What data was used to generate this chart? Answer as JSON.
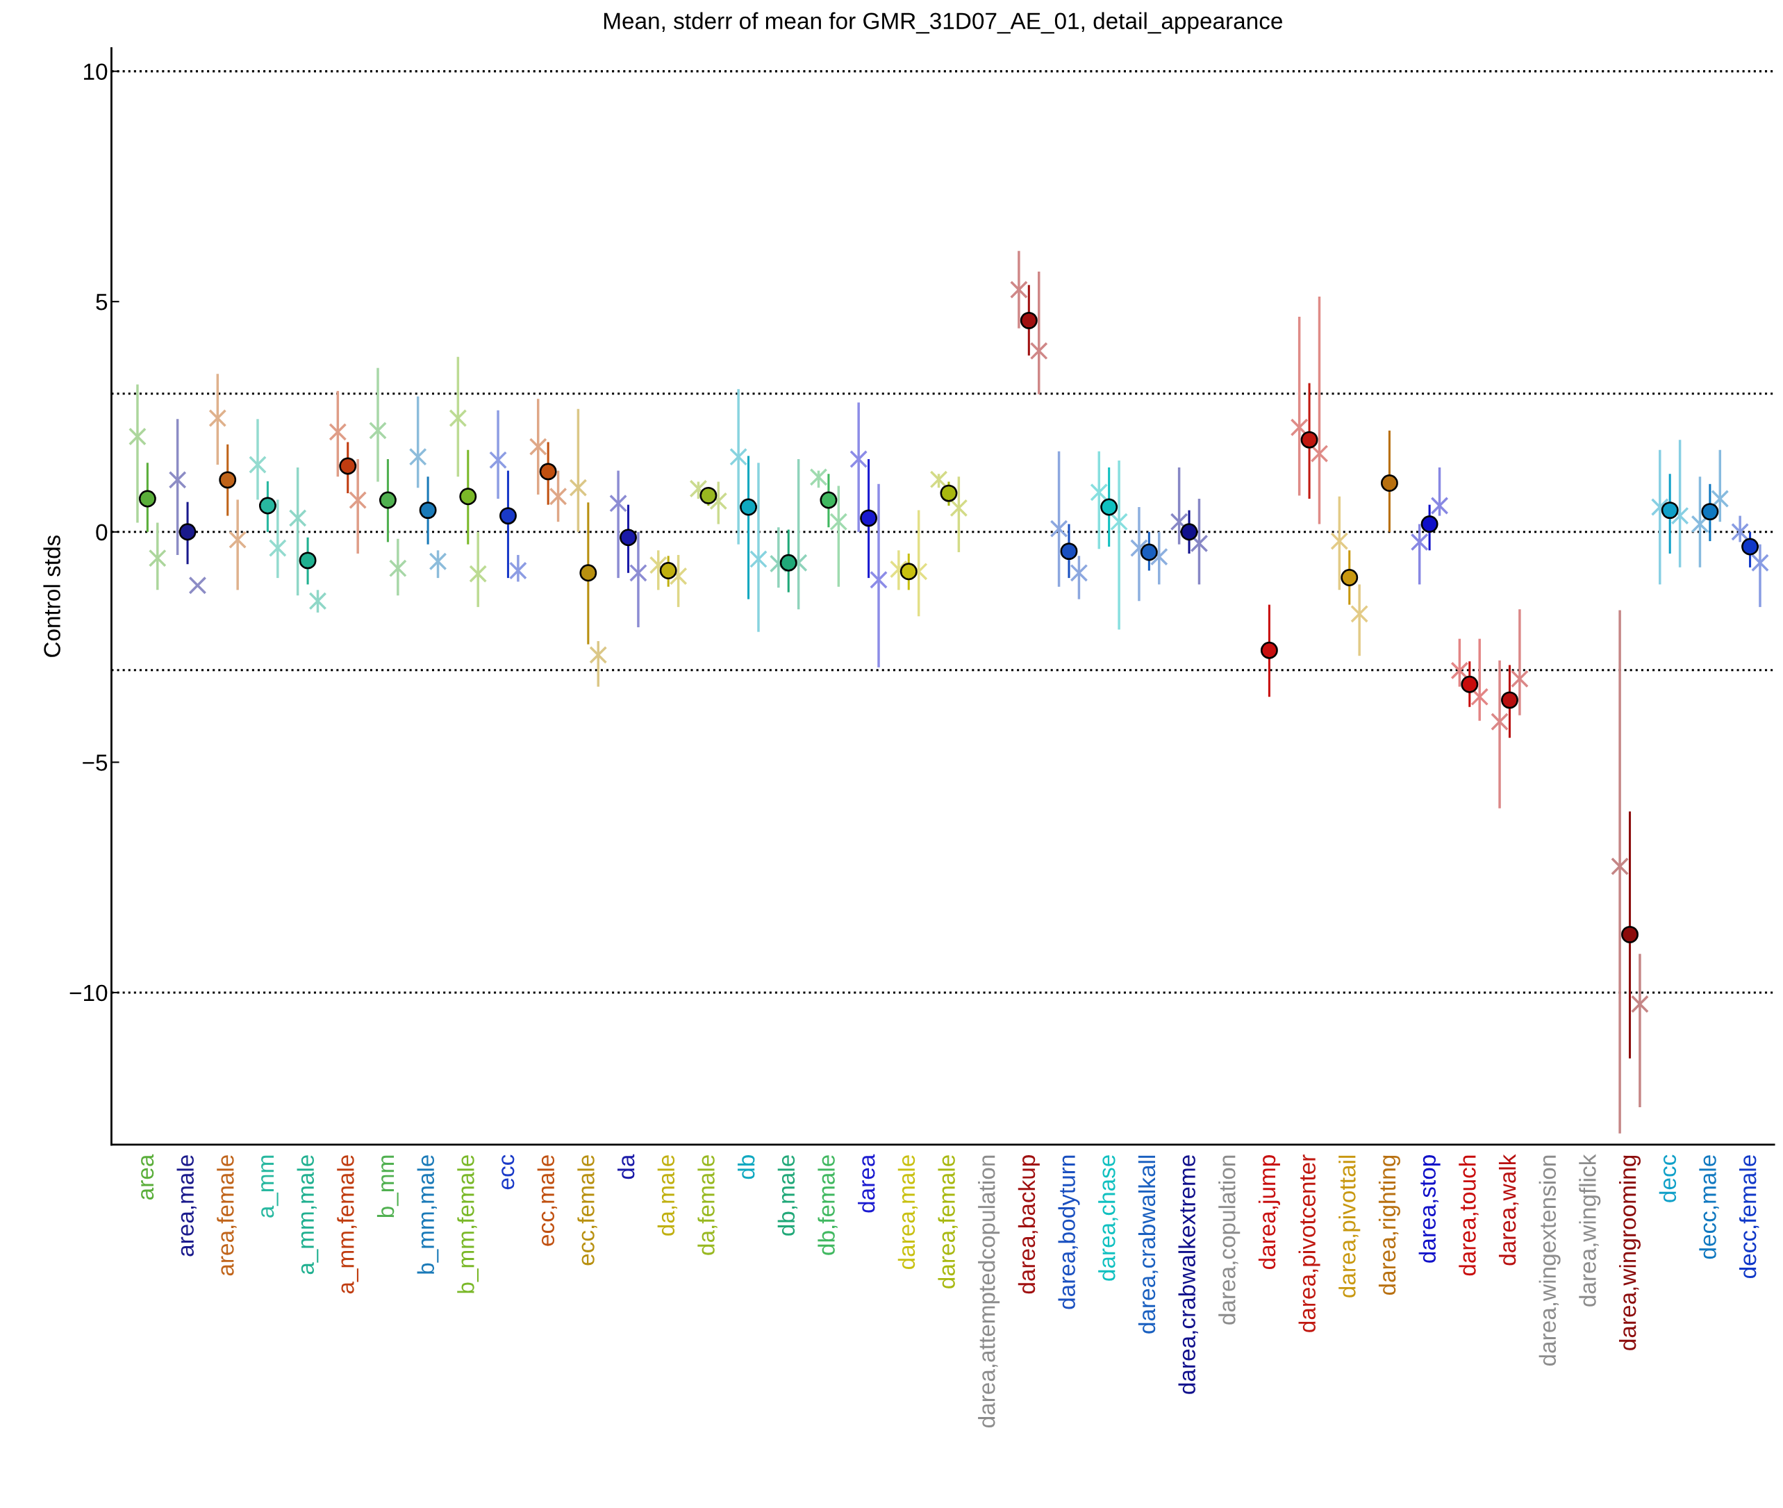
{
  "chart_data": {
    "type": "scatter",
    "title": "Mean, stderr of mean for GMR_31D07_AE_01, detail_appearance",
    "ylabel": "Control stds",
    "categories": [
      "area",
      "area,male",
      "area,female",
      "a_mm",
      "a_mm,male",
      "a_mm,female",
      "b_mm",
      "b_mm,male",
      "b_mm,female",
      "ecc",
      "ecc,male",
      "ecc,female",
      "da",
      "da,male",
      "da,female",
      "db",
      "db,male",
      "db,female",
      "darea",
      "darea,male",
      "darea,female",
      "darea,attemptedcopulation",
      "darea,backup",
      "darea,bodyturn",
      "darea,chase",
      "darea,crabwalkall",
      "darea,crabwalkextreme",
      "darea,copulation",
      "darea,jump",
      "darea,pivotcenter",
      "darea,pivottail",
      "darea,righting",
      "darea,stop",
      "darea,touch",
      "darea,walk",
      "darea,wingextension",
      "darea,wingflick",
      "darea,wingrooming",
      "decc",
      "decc,male",
      "decc,female"
    ],
    "ylim": [
      -13.3,
      10.5
    ],
    "yticks": [
      {
        "value": -10,
        "label": "−10"
      },
      {
        "value": -5,
        "label": "−5"
      },
      0,
      5,
      10
    ],
    "grid": false,
    "legend": false,
    "ref_lines": [
      {
        "axis": "y",
        "value": 10,
        "color": "#000000",
        "line_style": "dotted"
      },
      {
        "axis": "y",
        "value": 3,
        "color": "#000000",
        "line_style": "dotted"
      },
      {
        "axis": "y",
        "value": 0,
        "color": "#000000",
        "line_style": "dotted"
      },
      {
        "axis": "y",
        "value": -3,
        "color": "#000000",
        "line_style": "dotted"
      },
      {
        "axis": "y",
        "value": -10,
        "color": "#000000",
        "line_style": "dotted"
      }
    ],
    "series": [
      {
        "marker": "cross",
        "values": [
          2.07,
          1.13,
          2.47,
          1.46,
          0.3,
          2.17,
          2.2,
          1.63,
          2.47,
          1.56,
          1.85,
          0.96,
          0.62,
          -0.72,
          0.94,
          1.63,
          -0.69,
          1.19,
          1.58,
          -0.81,
          1.14,
          null,
          5.26,
          0.07,
          0.86,
          -0.35,
          0.22,
          null,
          null,
          2.27,
          -0.2,
          null,
          -0.22,
          -3.01,
          -4.12,
          null,
          null,
          -7.26,
          0.54,
          0.17,
          0
        ],
        "errors": [
          [
            0.2,
            3.2
          ],
          [
            -0.5,
            2.45
          ],
          [
            1.46,
            3.43
          ],
          [
            0.7,
            2.45
          ],
          [
            -1.38,
            1.4
          ],
          [
            1.2,
            3.06
          ],
          [
            1.09,
            3.56
          ],
          [
            0.96,
            2.94
          ],
          [
            1.2,
            3.8
          ],
          [
            0.72,
            2.64
          ],
          [
            0.81,
            2.89
          ],
          [
            0,
            2.67
          ],
          [
            -1.0,
            1.33
          ],
          [
            -1.26,
            -0.4
          ],
          [
            0.72,
            1.09
          ],
          [
            -0.27,
            3.1
          ],
          [
            -1.21,
            0.1
          ],
          [
            0.96,
            1.33
          ],
          [
            0,
            2.81
          ],
          [
            -1.26,
            -0.4
          ],
          [
            0.96,
            1.26
          ],
          null,
          [
            4.42,
            6.1
          ],
          [
            -1.19,
            1.75
          ],
          [
            -0.37,
            1.75
          ],
          [
            -1.5,
            0.54
          ],
          [
            -0.27,
            1.4
          ],
          null,
          null,
          [
            0.79,
            4.67
          ],
          [
            -1.26,
            0.77
          ],
          null,
          [
            -1.14,
            0.17
          ],
          [
            -3.36,
            -2.32
          ],
          [
            -6.0,
            -2.79
          ],
          null,
          null,
          [
            -13.06,
            -1.7
          ],
          [
            -1.14,
            1.78
          ],
          [
            -0.77,
            1.2
          ],
          [
            -0.22,
            0.35
          ]
        ],
        "colors": [
          "#acd69c",
          "#8c8cc5",
          "#dfb18c",
          "#93dbcf",
          "#8fd7c7",
          "#df9d87",
          "#a7d7a7",
          "#8cbcdb",
          "#bcdb93",
          "#8c9ce3",
          "#dfa787",
          "#dbc787",
          "#8c8cd3",
          "#dfd787",
          "#cbdb8f",
          "#87d3df",
          "#8fd3bb",
          "#9fdbaf",
          "#8c8ce7",
          "#e3df87",
          "#d3db87",
          null,
          "#cf8787",
          "#8ca7df",
          "#87dfdf",
          "#8cafdf",
          "#8787c5",
          null,
          null,
          "#df8b87",
          "#e3cb87",
          null,
          "#8787e3",
          "#e38585",
          "#db8787",
          null,
          null,
          "#c58585",
          "#87cfe3",
          "#87bbdf",
          "#879be3"
        ]
      },
      {
        "marker": "cross",
        "values": [
          -0.57,
          -1.16,
          -0.17,
          -0.35,
          -1.5,
          0.69,
          -0.79,
          -0.64,
          -0.91,
          -0.84,
          0.77,
          -2.67,
          -0.89,
          -0.96,
          0.67,
          -0.59,
          -0.67,
          0.22,
          -1.04,
          -0.86,
          0.52,
          null,
          3.93,
          -0.89,
          0.22,
          -0.54,
          -0.25,
          null,
          null,
          1.7,
          -1.78,
          null,
          0.57,
          -3.58,
          -3.19,
          null,
          null,
          -10.25,
          0.35,
          0.72,
          -0.67
        ],
        "errors": [
          [
            -1.26,
            0.2
          ],
          null,
          [
            -1.26,
            0.7
          ],
          [
            -1.0,
            0.7
          ],
          [
            -1.75,
            -1.26
          ],
          [
            -0.47,
            1.58
          ],
          [
            -1.38,
            -0.15
          ],
          [
            -1.0,
            -0.4
          ],
          [
            -1.63,
            0
          ],
          [
            -1.08,
            -0.5
          ],
          [
            0.22,
            1.33
          ],
          [
            -3.36,
            -2.37
          ],
          [
            -2.07,
            0
          ],
          [
            -1.63,
            -0.5
          ],
          [
            0.17,
            1.09
          ],
          [
            -2.17,
            1.5
          ],
          [
            -1.68,
            1.58
          ],
          [
            -1.19,
            1.0
          ],
          [
            -2.94,
            1.04
          ],
          [
            -1.83,
            0.47
          ],
          [
            -0.44,
            1.2
          ],
          null,
          [
            2.99,
            5.65
          ],
          [
            -1.46,
            -0.52
          ],
          [
            -2.12,
            1.55
          ],
          [
            -1.14,
            0
          ],
          [
            -1.14,
            0.72
          ],
          null,
          null,
          [
            0.17,
            5.11
          ],
          [
            -2.69,
            -1.14
          ],
          null,
          [
            0.35,
            1.4
          ],
          [
            -4.1,
            -2.32
          ],
          [
            -3.98,
            -1.68
          ],
          null,
          null,
          [
            -12.49,
            -9.16
          ],
          [
            -0.77,
            2.0
          ],
          [
            0.22,
            1.78
          ],
          [
            -1.63,
            -0.27
          ]
        ],
        "colors": [
          "#acd69c",
          "#8c8cc5",
          "#dfb18c",
          "#93dbcf",
          "#8fd7c7",
          "#df9d87",
          "#a7d7a7",
          "#8cbcdb",
          "#bcdb93",
          "#8c9ce3",
          "#dfa787",
          "#dbc787",
          "#8c8cd3",
          "#dfd787",
          "#cbdb8f",
          "#87d3df",
          "#8fd3bb",
          "#9fdbaf",
          "#8c8ce7",
          "#e3df87",
          "#d3db87",
          null,
          "#cf8787",
          "#8ca7df",
          "#87dfdf",
          "#8cafdf",
          "#8787c5",
          null,
          null,
          "#df8b87",
          "#e3cb87",
          null,
          "#8787e3",
          "#e38585",
          "#db8787",
          null,
          null,
          "#c58585",
          "#87cfe3",
          "#87bbdf",
          "#879be3"
        ]
      },
      {
        "marker": "circle",
        "values": [
          0.72,
          0,
          1.13,
          0.57,
          -0.62,
          1.43,
          0.69,
          0.47,
          0.77,
          0.35,
          1.31,
          -0.89,
          -0.12,
          -0.84,
          0.79,
          0.54,
          -0.67,
          0.69,
          0.3,
          -0.86,
          0.84,
          null,
          4.59,
          -0.42,
          0.54,
          -0.44,
          0,
          null,
          -2.57,
          2.0,
          -0.99,
          1.06,
          0.17,
          -3.31,
          -3.65,
          null,
          null,
          -8.74,
          0.47,
          0.44,
          -0.32
        ],
        "errors": [
          [
            0,
            1.5
          ],
          [
            -0.7,
            0.65
          ],
          [
            0.35,
            1.9
          ],
          [
            0,
            1.1
          ],
          [
            -1.14,
            -0.12
          ],
          [
            0.84,
            1.95
          ],
          [
            -0.22,
            1.58
          ],
          [
            -0.27,
            1.2
          ],
          [
            -0.27,
            1.78
          ],
          [
            -1.0,
            1.33
          ],
          [
            0.59,
            1.95
          ],
          [
            -2.44,
            0.64
          ],
          [
            -0.89,
            0.59
          ],
          [
            -1.19,
            -0.52
          ],
          [
            0.57,
            0.96
          ],
          [
            -1.46,
            1.65
          ],
          [
            -1.31,
            0.05
          ],
          [
            0.1,
            1.26
          ],
          [
            -1.0,
            1.58
          ],
          [
            -1.26,
            -0.47
          ],
          [
            0.57,
            1.09
          ],
          null,
          [
            3.83,
            5.36
          ],
          [
            -1.0,
            0.17
          ],
          [
            -0.32,
            1.4
          ],
          [
            -0.84,
            0
          ],
          [
            -0.47,
            0.47
          ],
          null,
          [
            -3.58,
            -1.58
          ],
          [
            0.72,
            3.23
          ],
          [
            -1.58,
            -0.4
          ],
          [
            0,
            2.2
          ],
          [
            -0.4,
            0.59
          ],
          [
            -3.8,
            -2.81
          ],
          [
            -4.47,
            -2.89
          ],
          null,
          null,
          [
            -11.43,
            -6.07
          ],
          [
            -0.47,
            1.26
          ],
          [
            -0.2,
            1.04
          ],
          [
            -0.77,
            0
          ]
        ],
        "colors": [
          "#5aae3a",
          "#1a1a8c",
          "#c0641a",
          "#28b8a0",
          "#20b090",
          "#c03c10",
          "#50b050",
          "#1a7ab8",
          "#7ab828",
          "#1a3ac8",
          "#c05010",
          "#b89010",
          "#1a1aa8",
          "#c0b010",
          "#98b820",
          "#10a8c0",
          "#20a878",
          "#40b860",
          "#1a1ad0",
          "#c8c010",
          "#a8b810",
          "#8c8c8c",
          "#a01010",
          "#1a50c0",
          "#10c0c0",
          "#1a60c0",
          "#10108c",
          "#8c8c8c",
          "#c81010",
          "#c01810",
          "#c89810",
          "#b87010",
          "#1010c8",
          "#c80c0c",
          "#b81010",
          "#8c8c8c",
          "#8c8c8c",
          "#8c0c0c",
          "#10a0c8",
          "#1078c0",
          "#1038c8"
        ]
      }
    ]
  }
}
